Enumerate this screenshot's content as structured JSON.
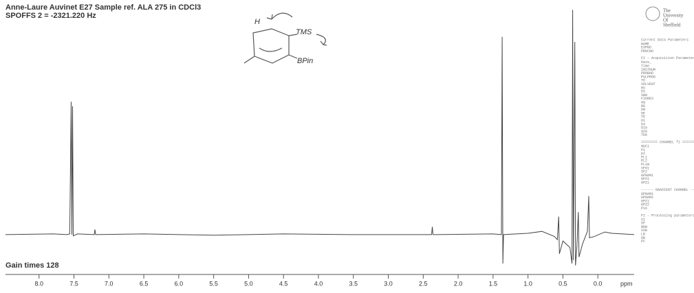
{
  "chart_data": {
    "type": "line",
    "title": "Anne-Laure Auvinet  E27  Sample ref. ALA 275 in CDCl3",
    "subtitle": "SPOFFS 2 = -2321.220 Hz",
    "note": "Gain times 128",
    "x_label": "ppm",
    "annotations": [
      "H",
      "TMS",
      "BPin"
    ],
    "color": "#444444",
    "x": [
      8.48,
      7.8,
      7.6,
      7.56,
      7.54,
      7.53,
      7.52,
      7.51,
      7.45,
      7.21,
      7.2,
      7.19,
      6.5,
      5.5,
      4.5,
      3.5,
      2.38,
      2.37,
      2.36,
      1.5,
      1.38,
      1.37,
      1.36,
      1.35,
      1.0,
      0.8,
      0.62,
      0.58,
      0.56,
      0.55,
      0.5,
      0.4,
      0.37,
      0.36,
      0.35,
      0.33,
      0.32,
      0.3,
      0.28,
      0.27,
      0.22,
      0.15,
      0.13,
      0.12,
      0.05,
      -0.1,
      -0.2,
      -0.52
    ],
    "values": [
      0,
      1,
      0,
      1,
      207,
      0,
      200,
      -2,
      1,
      0,
      8,
      0,
      1,
      -1,
      1,
      0,
      0,
      12,
      0,
      1,
      0,
      308,
      -45,
      0,
      2,
      5,
      -3,
      -8,
      28,
      -30,
      -10,
      -20,
      -45,
      350,
      -40,
      300,
      -48,
      -20,
      35,
      -35,
      -15,
      5,
      60,
      -5,
      -3,
      4,
      2,
      0
    ],
    "xlim": [
      8.48,
      -0.52
    ],
    "ylim": [
      -60,
      360
    ],
    "xticks": [
      {
        "value": 8,
        "label": "8.0"
      },
      {
        "value": 7.5,
        "label": "7.5"
      },
      {
        "value": 7,
        "label": "7.0"
      },
      {
        "value": 6.5,
        "label": "6.5"
      },
      {
        "value": 6,
        "label": "6.0"
      },
      {
        "value": 5.5,
        "label": "5.5"
      },
      {
        "value": 5,
        "label": "5.0"
      },
      {
        "value": 4.5,
        "label": "4.5"
      },
      {
        "value": 4,
        "label": "4.0"
      },
      {
        "value": 3.5,
        "label": "3.5"
      },
      {
        "value": 3,
        "label": "3.0"
      },
      {
        "value": 2.5,
        "label": "2.5"
      },
      {
        "value": 2,
        "label": "2.0"
      },
      {
        "value": 1.5,
        "label": "1.5"
      },
      {
        "value": 1,
        "label": "1.0"
      },
      {
        "value": 0.5,
        "label": "0.5"
      },
      {
        "value": 0,
        "label": "0.0"
      }
    ]
  },
  "sidebar": {
    "logo": [
      "The",
      "University",
      "Of",
      "Sheffield"
    ],
    "sections": [
      {
        "title": "Current Data Parameters",
        "items": [
          "NAME",
          "EXPNO",
          "PROCNO"
        ]
      },
      {
        "title": "F2 - Acquisition Parameters",
        "items": [
          "Date_",
          "Time",
          "INSTRUM",
          "PROBHD",
          "PULPROG",
          "TD",
          "SOLVENT",
          "NS",
          "DS",
          "SWH",
          "FIDRES",
          "AQ",
          "RG",
          "DW",
          "DE",
          "TE",
          "D1",
          "D4",
          "D16",
          "d20",
          "TD0"
        ]
      },
      {
        "title": "======== CHANNEL f1 ========",
        "items": [
          "NUC1",
          "P1",
          "p2",
          "PL1",
          "PL2",
          "PL1W",
          "SFO1",
          "SF2",
          "GPNAM1",
          "GPX1",
          "GPZ1"
        ]
      },
      {
        "title": "------ GRADIENT CHANNEL ------",
        "items": [
          "GPNAM1",
          "GPNAM2",
          "GPZ1",
          "GPZ2",
          "P16"
        ]
      },
      {
        "title": "F2 - Processing parameters",
        "items": [
          "SI",
          "SF",
          "WDW",
          "SSB",
          "LB",
          "GB",
          "PC"
        ]
      }
    ]
  }
}
